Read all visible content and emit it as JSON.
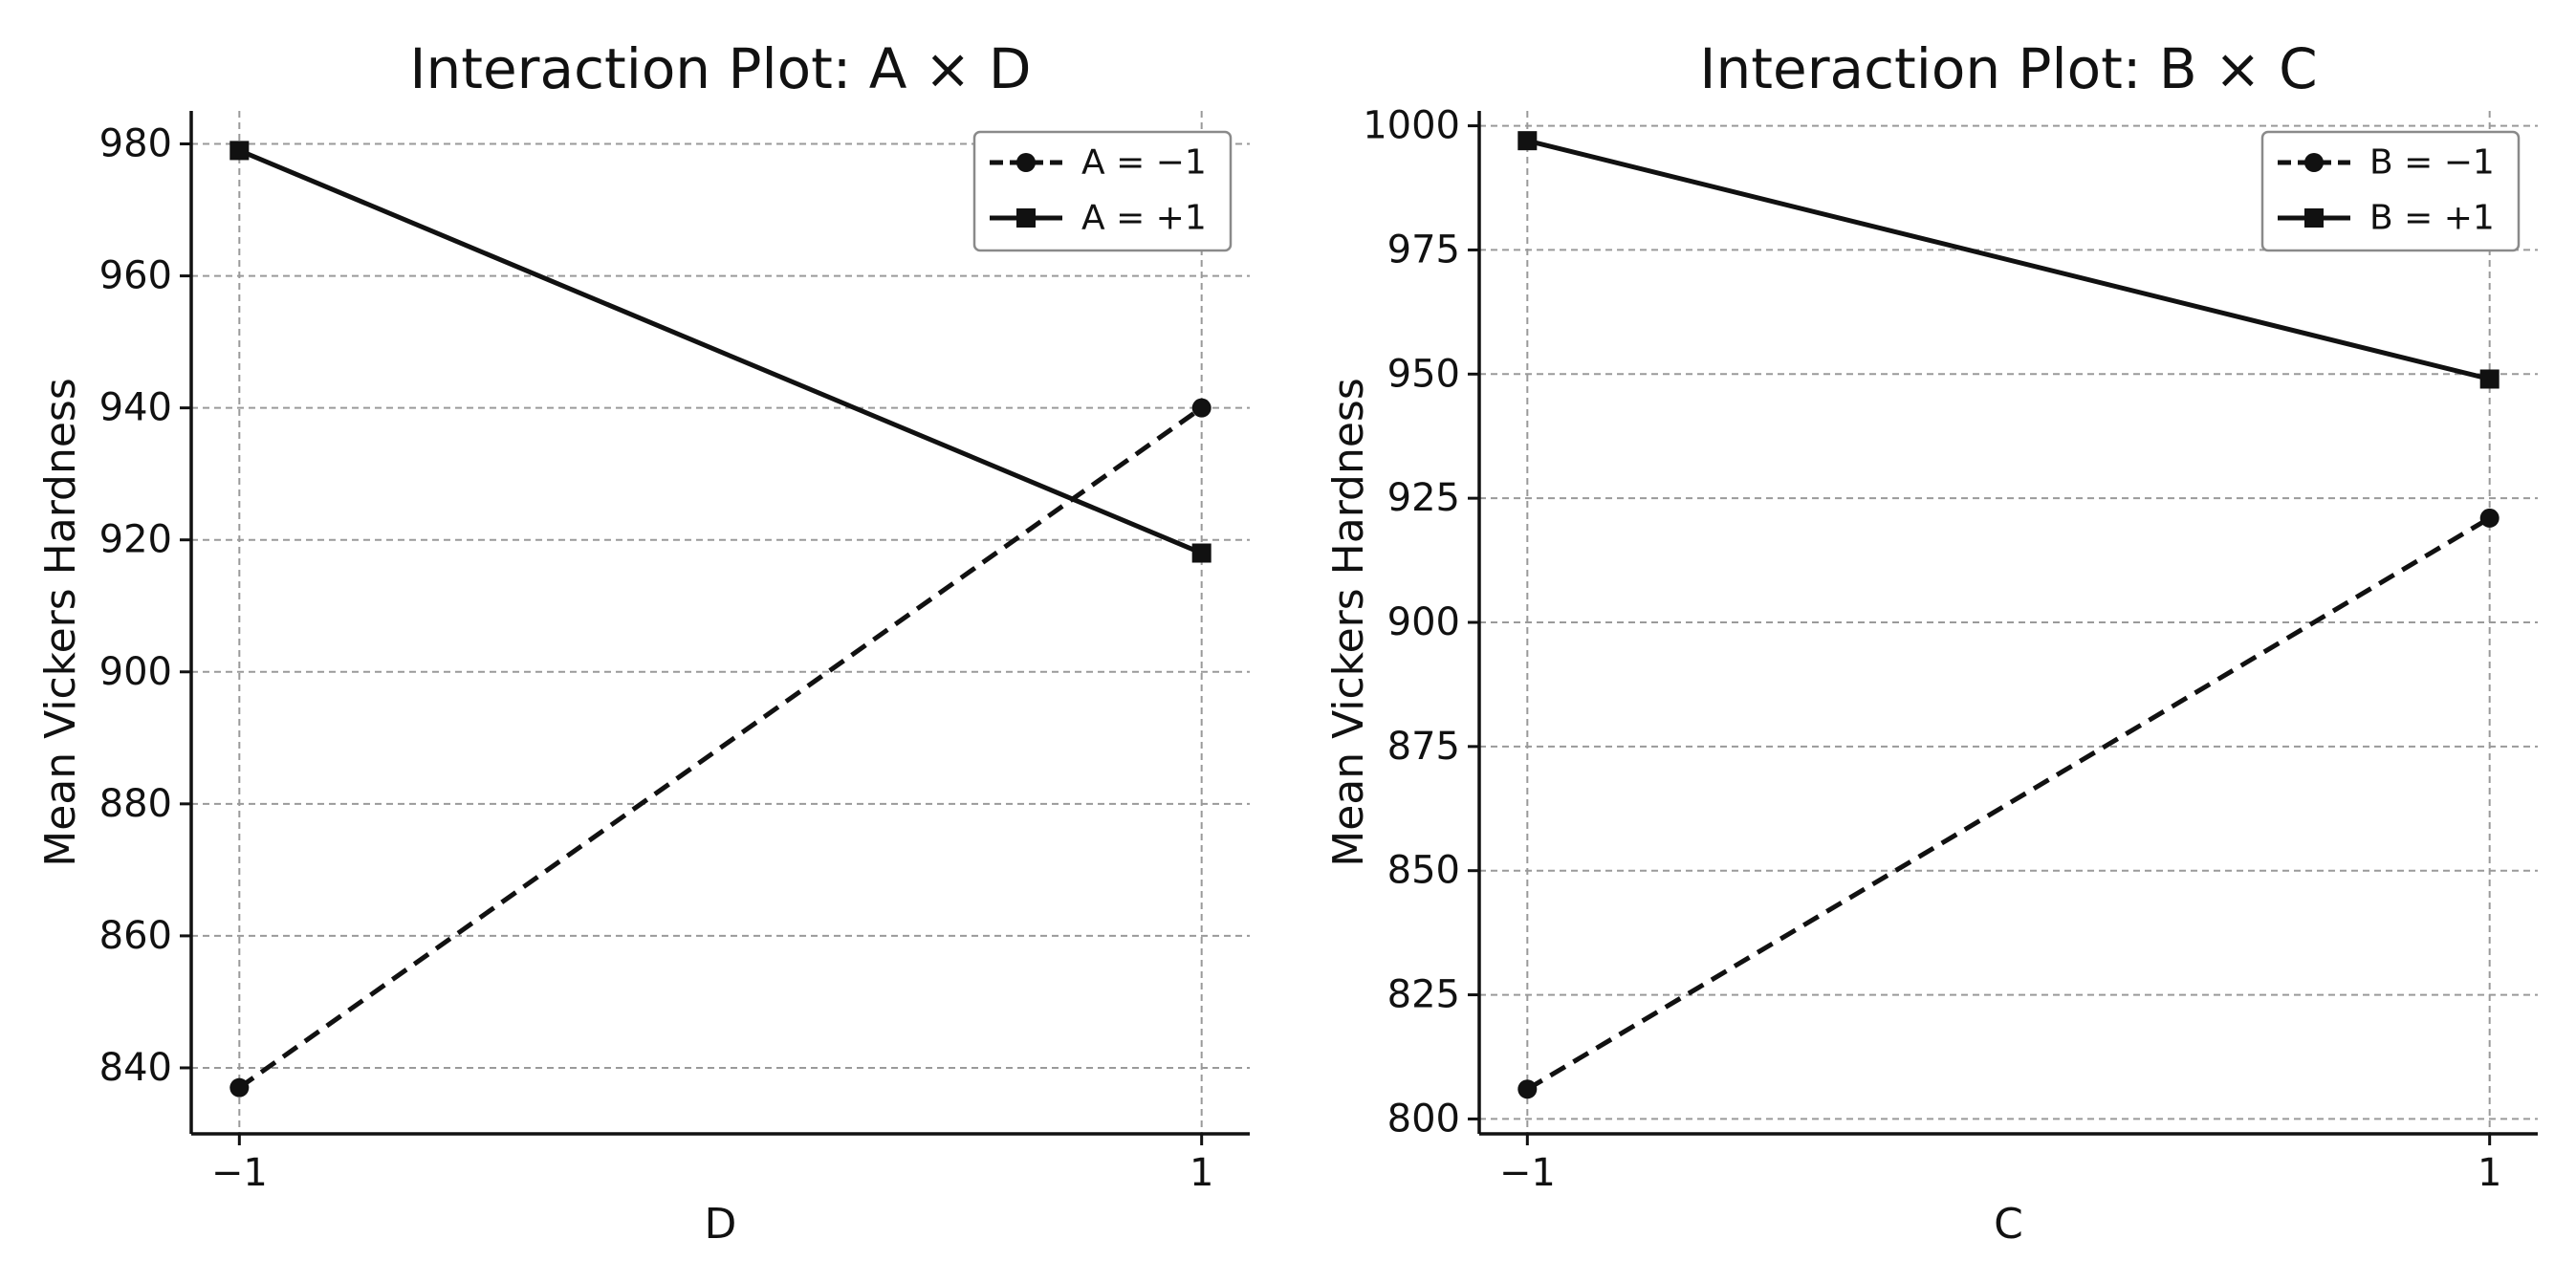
{
  "chart_data": [
    {
      "type": "line",
      "title": "Interaction Plot: A × D",
      "xlabel": "D",
      "ylabel": "Mean Vickers Hardness",
      "x": [
        -1,
        1
      ],
      "x_tick_labels": [
        "−1",
        "1"
      ],
      "xlim": [
        -1.1,
        1.1
      ],
      "ylim": [
        830,
        985
      ],
      "y_ticks": [
        840,
        860,
        880,
        900,
        920,
        940,
        960,
        980
      ],
      "grid": true,
      "legend_position": "top-right",
      "series": [
        {
          "name": "A = −1",
          "values": [
            837,
            940
          ],
          "line": "dashed",
          "marker": "circle"
        },
        {
          "name": "A = +1",
          "values": [
            979,
            918
          ],
          "line": "solid",
          "marker": "square"
        }
      ]
    },
    {
      "type": "line",
      "title": "Interaction Plot: B × C",
      "xlabel": "C",
      "ylabel": "Mean Vickers Hardness",
      "x": [
        -1,
        1
      ],
      "x_tick_labels": [
        "−1",
        "1"
      ],
      "xlim": [
        -1.1,
        1.1
      ],
      "ylim": [
        797,
        1003
      ],
      "y_ticks": [
        800,
        825,
        850,
        875,
        900,
        925,
        950,
        975,
        1000
      ],
      "grid": true,
      "legend_position": "top-right",
      "series": [
        {
          "name": "B = −1",
          "values": [
            806,
            921
          ],
          "line": "dashed",
          "marker": "circle"
        },
        {
          "name": "B = +1",
          "values": [
            997,
            949
          ],
          "line": "solid",
          "marker": "square"
        }
      ]
    }
  ]
}
